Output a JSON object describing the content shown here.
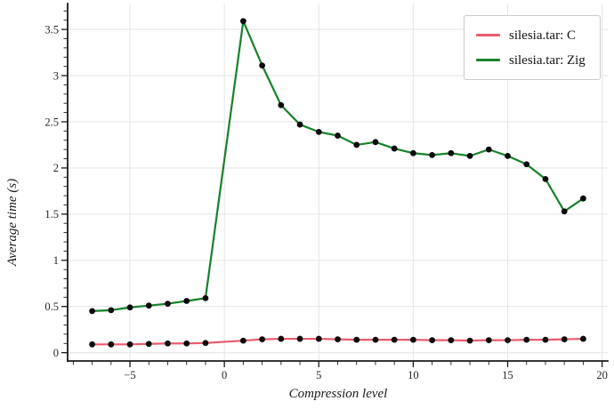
{
  "chart_data": {
    "type": "line",
    "title": "",
    "xlabel": "Compression level",
    "ylabel": "Average time (s)",
    "xlim": [
      -8.3,
      20.3
    ],
    "ylim": [
      -0.09,
      3.78
    ],
    "grid": true,
    "legend_position": "upper right",
    "x_major_ticks": [
      -5,
      0,
      5,
      10,
      15,
      20
    ],
    "x_major_tick_labels": [
      "−5",
      "0",
      "5",
      "10",
      "15",
      "20"
    ],
    "x_minor_step": 1,
    "y_major_ticks": [
      0,
      0.5,
      1,
      1.5,
      2,
      2.5,
      3,
      3.5
    ],
    "y_major_tick_labels": [
      "0",
      "0.5",
      "1",
      "1.5",
      "2",
      "2.5",
      "3",
      "3.5"
    ],
    "y_minor_step": 0.1,
    "marker": "circle",
    "marker_color": "#0a0a0a",
    "x": [
      -7,
      -6,
      -5,
      -4,
      -3,
      -2,
      -1,
      1,
      2,
      3,
      4,
      5,
      6,
      7,
      8,
      9,
      10,
      11,
      12,
      13,
      14,
      15,
      16,
      17,
      18,
      19
    ],
    "series": [
      {
        "name": "silesia.tar: C",
        "color": "#e85d6e",
        "values": [
          0.09,
          0.09,
          0.09,
          0.095,
          0.1,
          0.1,
          0.105,
          0.13,
          0.145,
          0.15,
          0.15,
          0.15,
          0.145,
          0.14,
          0.14,
          0.14,
          0.14,
          0.135,
          0.135,
          0.13,
          0.135,
          0.135,
          0.14,
          0.14,
          0.145,
          0.15
        ]
      },
      {
        "name": "silesia.tar: Zig",
        "color": "#17812b",
        "values": [
          0.45,
          0.46,
          0.49,
          0.51,
          0.53,
          0.56,
          0.59,
          3.59,
          3.11,
          2.68,
          2.47,
          2.39,
          2.35,
          2.25,
          2.28,
          2.21,
          2.16,
          2.14,
          2.16,
          2.13,
          2.2,
          2.13,
          2.04,
          1.88,
          1.53,
          1.67
        ]
      }
    ]
  }
}
